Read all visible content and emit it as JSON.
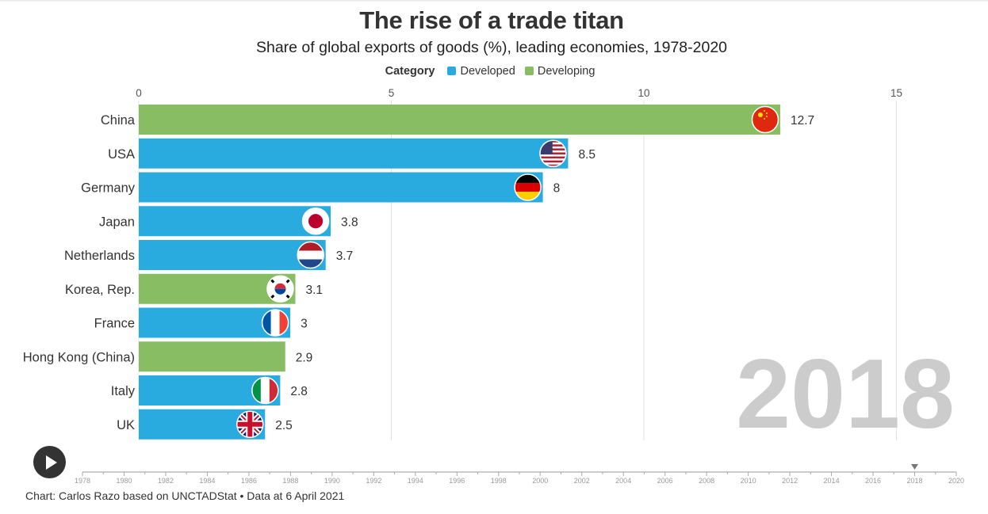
{
  "header": {
    "title": "The rise of a trade titan",
    "subtitle": "Share of global exports of goods (%), leading economies, 1978-2020"
  },
  "legend": {
    "title": "Category",
    "items": [
      {
        "label": "Developed",
        "color": "#29abe0"
      },
      {
        "label": "Developing",
        "color": "#88bd63"
      }
    ]
  },
  "chart_data": {
    "type": "bar",
    "orientation": "horizontal",
    "title": "The rise of a trade titan",
    "subtitle": "Share of global exports of goods (%), leading economies, 1978-2020",
    "xlim": [
      0,
      15
    ],
    "x_ticks": [
      0,
      5,
      10,
      15
    ],
    "grid": true,
    "legend_position": "top-center",
    "current_year": "2018",
    "categories": [
      "China",
      "USA",
      "Germany",
      "Japan",
      "Netherlands",
      "Korea, Rep.",
      "France",
      "Hong Kong (China)",
      "Italy",
      "UK"
    ],
    "values": [
      12.7,
      8.5,
      8,
      3.8,
      3.7,
      3.1,
      3,
      2.9,
      2.8,
      2.5
    ],
    "value_labels": [
      "12.7",
      "8.5",
      "8",
      "3.8",
      "3.7",
      "3.1",
      "3",
      "2.9",
      "2.8",
      "2.5"
    ],
    "group": [
      "Developing",
      "Developed",
      "Developed",
      "Developed",
      "Developed",
      "Developing",
      "Developed",
      "Developing",
      "Developed",
      "Developed"
    ],
    "flags": [
      "china-flag-icon",
      "usa-flag-icon",
      "germany-flag-icon",
      "japan-flag-icon",
      "netherlands-flag-icon",
      "korea-flag-icon",
      "france-flag-icon",
      "",
      "italy-flag-icon",
      "uk-flag-icon"
    ]
  },
  "timeline": {
    "years": [
      "1978",
      "1980",
      "1982",
      "1984",
      "1986",
      "1988",
      "1990",
      "1992",
      "1994",
      "1996",
      "1998",
      "2000",
      "2002",
      "2004",
      "2006",
      "2008",
      "2010",
      "2012",
      "2014",
      "2016",
      "2018",
      "2020"
    ],
    "start": 1978,
    "end": 2020,
    "current": 2018
  },
  "controls": {
    "play_icon": "play-icon"
  },
  "footer": {
    "credit": "Chart: Carlos Razo based on UNCTADStat • Data at 6 April 2021"
  }
}
